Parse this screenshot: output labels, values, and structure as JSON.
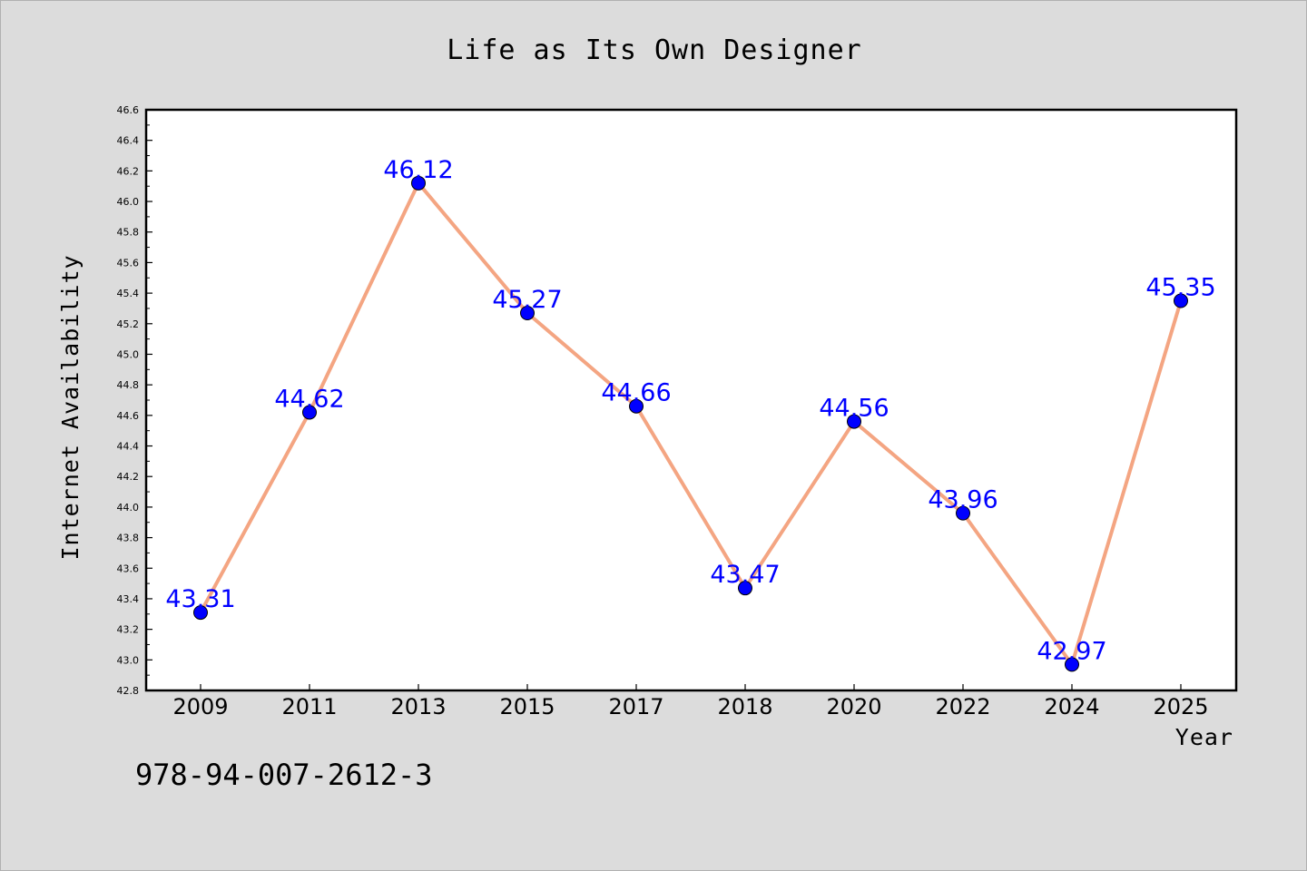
{
  "chart_data": {
    "type": "line",
    "title": "Life as Its Own Designer",
    "xlabel": "Year",
    "ylabel": "Internet Availability",
    "categories": [
      "2009",
      "2011",
      "2013",
      "2015",
      "2017",
      "2018",
      "2020",
      "2022",
      "2024",
      "2025"
    ],
    "series": [
      {
        "values": [
          43.31,
          44.62,
          46.12,
          45.27,
          44.66,
          43.47,
          44.56,
          43.96,
          42.97,
          45.35
        ],
        "labels": [
          "43.31",
          "44.62",
          "46.12",
          "45.27",
          "44.66",
          "43.47",
          "44.56",
          "43.96",
          "42.97",
          "45.35"
        ],
        "line_color": "#f4a582",
        "marker_color": "#0000ff"
      }
    ],
    "ylim": [
      42.8,
      46.6
    ],
    "yticks": [
      "42.8",
      "43.0",
      "43.2",
      "43.4",
      "43.6",
      "43.8",
      "44.0",
      "44.2",
      "44.4",
      "44.6",
      "44.8",
      "45.0",
      "45.2",
      "45.4",
      "45.6",
      "45.8",
      "46.0",
      "46.2",
      "46.4",
      "46.6"
    ],
    "grid": false,
    "legend": "none"
  },
  "footer": {
    "isbn": "978-94-007-2612-3"
  },
  "colors": {
    "background": "#dcdcdc",
    "plot_background": "#ffffff",
    "data_label": "#0000ff"
  }
}
